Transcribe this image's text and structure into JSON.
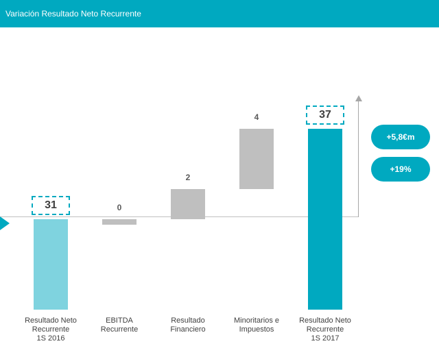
{
  "header": {
    "title": "Variación Resultado Neto Recurrente"
  },
  "chart_data": {
    "type": "waterfall",
    "categories": [
      "Resultado Neto\nRecurrente\n1S 2016",
      "EBITDA\nRecurrente",
      "Resultado\nFinanciero",
      "Minoritarios e\nImpuestos",
      "Resultado Neto\nRecurrente\n1S 2017"
    ],
    "values": [
      31,
      0,
      2,
      4,
      37
    ],
    "measures": [
      "absolute",
      "relative",
      "relative",
      "relative",
      "total"
    ],
    "colors": [
      "#7fd3df",
      "#bfbfbf",
      "#bfbfbf",
      "#bfbfbf",
      "#00a9c0"
    ],
    "highlight": [
      true,
      false,
      false,
      false,
      true
    ],
    "ylim": [
      25,
      39
    ],
    "annotations": [
      "+5,8€m",
      "+19%"
    ]
  }
}
